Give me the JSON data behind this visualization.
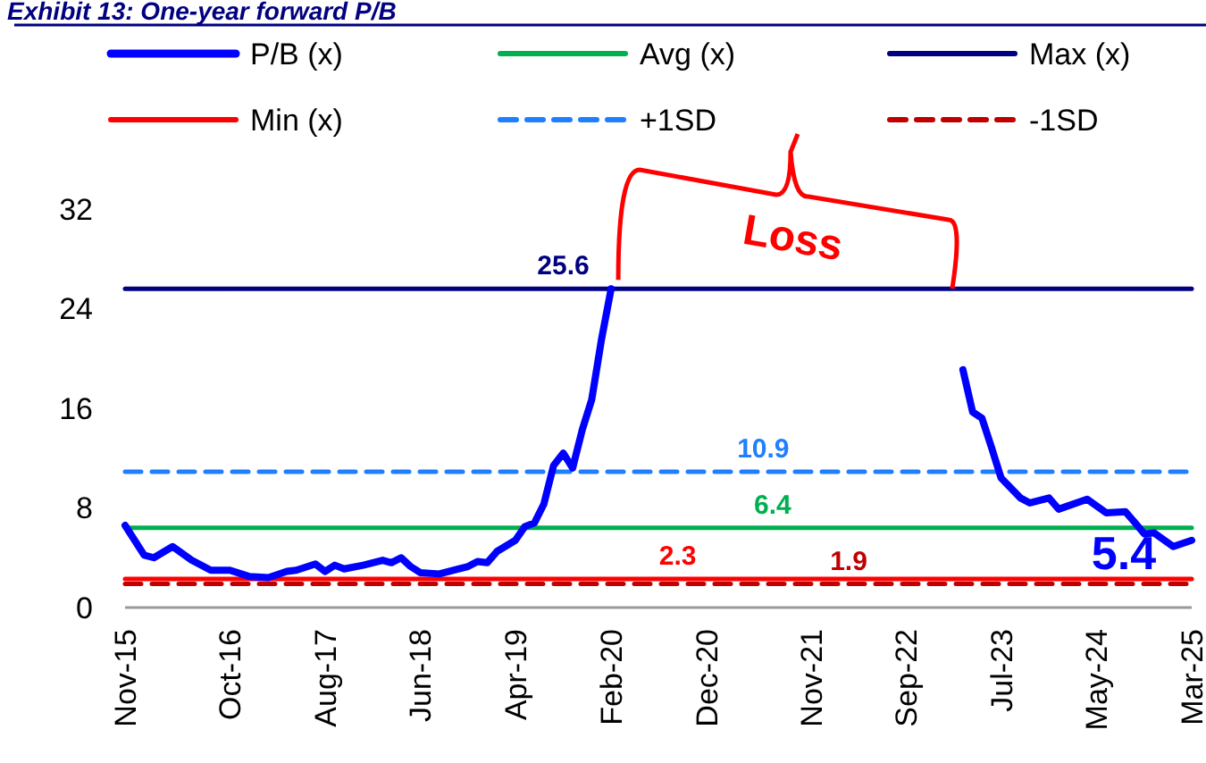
{
  "chart_data": {
    "type": "line",
    "title": "Exhibit 13: One-year forward P/B",
    "legend": "top",
    "ylim": [
      0,
      32
    ],
    "yticks": [
      0,
      8,
      16,
      24,
      32
    ],
    "xlim": [
      "2015-11",
      "2025-03"
    ],
    "xticks": [
      {
        "value": "2015-11",
        "label": "Nov-15"
      },
      {
        "value": "2016-10",
        "label": "Oct-16"
      },
      {
        "value": "2017-08",
        "label": "Aug-17"
      },
      {
        "value": "2018-06",
        "label": "Jun-18"
      },
      {
        "value": "2019-04",
        "label": "Apr-19"
      },
      {
        "value": "2020-02",
        "label": "Feb-20"
      },
      {
        "value": "2020-12",
        "label": "Dec-20"
      },
      {
        "value": "2021-11",
        "label": "Nov-21"
      },
      {
        "value": "2022-09",
        "label": "Sep-22"
      },
      {
        "value": "2023-07",
        "label": "Jul-23"
      },
      {
        "value": "2024-05",
        "label": "May-24"
      },
      {
        "value": "2025-03",
        "label": "Mar-25"
      }
    ],
    "annotations": [
      {
        "text": "Loss",
        "x": "2023-03",
        "y": 25.6
      }
    ],
    "series": [
      {
        "name": "P/B (x)",
        "color": "#0000ff",
        "x": [
          "2015-11",
          "2016-01",
          "2016-02",
          "2016-04",
          "2016-06",
          "2016-08",
          "2016-10",
          "2016-12",
          "2017-02",
          "2017-04",
          "2017-05",
          "2017-07",
          "2017-08",
          "2017-09",
          "2017-10",
          "2017-12",
          "2018-02",
          "2018-03",
          "2018-04",
          "2018-05",
          "2018-06",
          "2018-08",
          "2018-11",
          "2018-12",
          "2019-01",
          "2019-02",
          "2019-04",
          "2019-05",
          "2019-06",
          "2019-07",
          "2019-08",
          "2019-09",
          "2019-10",
          "2019-11",
          "2019-12",
          "2020-01",
          "2020-02",
          "2021-09",
          "2023-03",
          "2023-04",
          "2023-05",
          "2023-06",
          "2023-07",
          "2023-09",
          "2023-10",
          "2023-12",
          "2024-01",
          "2024-04",
          "2024-06",
          "2024-08",
          "2024-09",
          "2024-10",
          "2024-11",
          "2025-01",
          "2025-03"
        ],
        "values": [
          6.6,
          4.2,
          4.0,
          4.9,
          3.8,
          3.0,
          3.0,
          2.5,
          2.4,
          2.9,
          3.0,
          3.5,
          2.9,
          3.4,
          3.1,
          3.4,
          3.8,
          3.6,
          4.0,
          3.3,
          2.8,
          2.7,
          3.3,
          3.7,
          3.6,
          4.5,
          5.4,
          6.5,
          6.8,
          8.3,
          11.4,
          12.4,
          11.2,
          14.3,
          16.7,
          21.5,
          25.6,
          null,
          19.1,
          15.7,
          15.2,
          12.8,
          10.4,
          8.8,
          8.4,
          8.8,
          7.9,
          8.7,
          7.6,
          7.7,
          6.8,
          5.9,
          6.0,
          4.9,
          5.4
        ],
        "value_labels": [
          null,
          null,
          null,
          null,
          null,
          null,
          null,
          null,
          null,
          null,
          null,
          null,
          null,
          null,
          null,
          null,
          null,
          null,
          null,
          null,
          null,
          null,
          null,
          null,
          null,
          null,
          null,
          null,
          null,
          null,
          null,
          null,
          null,
          null,
          null,
          null,
          null,
          null,
          null,
          null,
          null,
          null,
          null,
          null,
          null,
          null,
          null,
          null,
          null,
          null,
          null,
          null,
          null,
          null,
          "5.4"
        ]
      },
      {
        "name": "Avg (x)",
        "color": "#00b050",
        "x": [
          "2015-11",
          "2021-07",
          "2025-03"
        ],
        "values": [
          6.4,
          6.4,
          6.4
        ],
        "value_labels": [
          null,
          "6.4",
          null
        ]
      },
      {
        "name": "Max (x)",
        "color": "#000080",
        "x": [
          "2015-11",
          "2019-09",
          "2025-03"
        ],
        "values": [
          25.6,
          25.6,
          25.6
        ],
        "value_labels": [
          null,
          "25.6",
          null
        ]
      },
      {
        "name": "Min (x)",
        "color": "#ff0000",
        "x": [
          "2015-11",
          "2020-09",
          "2025-03"
        ],
        "values": [
          2.3,
          2.3,
          2.3
        ],
        "value_labels": [
          null,
          "2.3",
          null
        ]
      },
      {
        "name": "+1SD",
        "color": "#1f7fff",
        "line_style": "dashed",
        "x": [
          "2015-11",
          "2021-06",
          "2025-03"
        ],
        "values": [
          10.9,
          10.9,
          10.9
        ],
        "value_labels": [
          null,
          "10.9",
          null
        ]
      },
      {
        "name": "-1SD",
        "color": "#c00000",
        "line_style": "dashed",
        "x": [
          "2015-11",
          "2022-03",
          "2025-03"
        ],
        "values": [
          1.9,
          1.9,
          1.9
        ],
        "value_labels": [
          null,
          "1.9",
          null
        ]
      }
    ]
  }
}
